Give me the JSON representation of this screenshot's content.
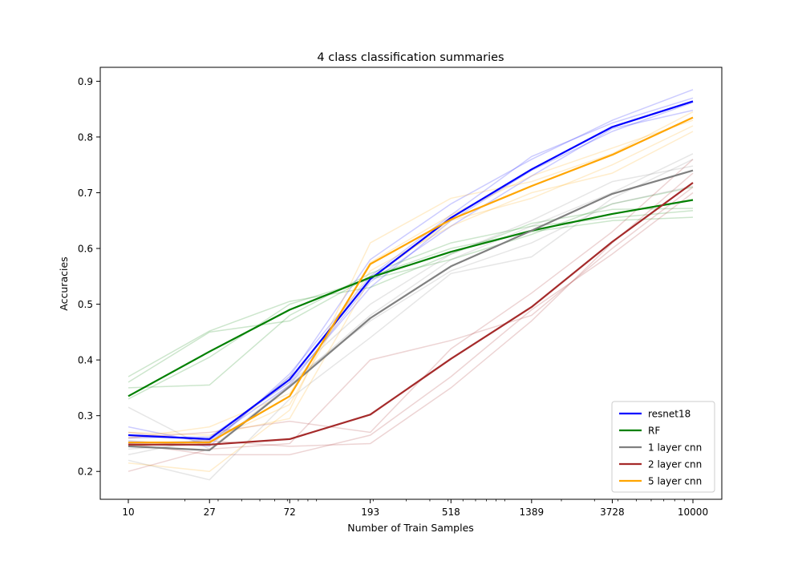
{
  "chart_data": {
    "type": "line",
    "title": "4 class classification summaries",
    "xlabel": "Number of Train Samples",
    "ylabel": "Accuracies",
    "x_scale": "log",
    "x": [
      10,
      27,
      72,
      193,
      518,
      1389,
      3728,
      10000
    ],
    "x_tick_labels": [
      "10",
      "27",
      "72",
      "193",
      "518",
      "1389",
      "3728",
      "10000"
    ],
    "y_ticks": [
      0.2,
      0.3,
      0.4,
      0.5,
      0.6,
      0.7,
      0.8,
      0.9
    ],
    "y_tick_labels": [
      "0.2",
      "0.3",
      "0.4",
      "0.5",
      "0.6",
      "0.7",
      "0.8",
      "0.9"
    ],
    "ylim": [
      0.15,
      0.925
    ],
    "legend_position": "lower-right",
    "grid": false,
    "series": [
      {
        "name": "resnet18",
        "color": "#0000ff",
        "values": [
          0.265,
          0.258,
          0.365,
          0.545,
          0.655,
          0.742,
          0.818,
          0.864
        ],
        "runs": [
          [
            0.28,
            0.25,
            0.37,
            0.58,
            0.68,
            0.76,
            0.83,
            0.885
          ],
          [
            0.26,
            0.262,
            0.36,
            0.53,
            0.65,
            0.74,
            0.81,
            0.862
          ],
          [
            0.25,
            0.255,
            0.355,
            0.54,
            0.64,
            0.73,
            0.815,
            0.848
          ],
          [
            0.255,
            0.245,
            0.375,
            0.55,
            0.66,
            0.765,
            0.825,
            0.87
          ]
        ]
      },
      {
        "name": "RF",
        "color": "#008000",
        "values": [
          0.335,
          0.415,
          0.49,
          0.548,
          0.594,
          0.632,
          0.662,
          0.687
        ],
        "runs": [
          [
            0.37,
            0.452,
            0.505,
            0.53,
            0.59,
            0.645,
            0.67,
            0.672
          ],
          [
            0.35,
            0.355,
            0.48,
            0.555,
            0.61,
            0.64,
            0.655,
            0.668
          ],
          [
            0.33,
            0.405,
            0.5,
            0.545,
            0.58,
            0.625,
            0.68,
            0.71
          ],
          [
            0.36,
            0.45,
            0.47,
            0.55,
            0.6,
            0.63,
            0.65,
            0.656
          ]
        ]
      },
      {
        "name": "1 layer cnn",
        "color": "#808080",
        "values": [
          0.245,
          0.238,
          0.352,
          0.475,
          0.568,
          0.632,
          0.698,
          0.74
        ],
        "runs": [
          [
            0.315,
            0.24,
            0.355,
            0.48,
            0.58,
            0.64,
            0.7,
            0.77
          ],
          [
            0.22,
            0.185,
            0.33,
            0.44,
            0.555,
            0.585,
            0.69,
            0.76
          ],
          [
            0.24,
            0.25,
            0.37,
            0.5,
            0.59,
            0.65,
            0.72,
            0.748
          ],
          [
            0.23,
            0.26,
            0.36,
            0.47,
            0.56,
            0.61,
            0.68,
            0.712
          ]
        ]
      },
      {
        "name": "2 layer cnn",
        "color": "#a52a2a",
        "values": [
          0.248,
          0.248,
          0.258,
          0.302,
          0.402,
          0.495,
          0.612,
          0.718
        ],
        "runs": [
          [
            0.26,
            0.27,
            0.29,
            0.27,
            0.42,
            0.52,
            0.63,
            0.76
          ],
          [
            0.2,
            0.24,
            0.25,
            0.4,
            0.435,
            0.48,
            0.6,
            0.71
          ],
          [
            0.25,
            0.23,
            0.23,
            0.265,
            0.37,
            0.49,
            0.59,
            0.7
          ],
          [
            0.27,
            0.255,
            0.245,
            0.25,
            0.35,
            0.47,
            0.61,
            0.735
          ]
        ]
      },
      {
        "name": "5 layer cnn",
        "color": "#ffa500",
        "values": [
          0.252,
          0.252,
          0.335,
          0.572,
          0.652,
          0.712,
          0.768,
          0.835
        ],
        "runs": [
          [
            0.215,
            0.2,
            0.31,
            0.61,
            0.69,
            0.72,
            0.77,
            0.845
          ],
          [
            0.26,
            0.28,
            0.34,
            0.56,
            0.64,
            0.7,
            0.735,
            0.81
          ],
          [
            0.245,
            0.255,
            0.32,
            0.575,
            0.66,
            0.73,
            0.78,
            0.83
          ],
          [
            0.27,
            0.265,
            0.295,
            0.545,
            0.65,
            0.69,
            0.75,
            0.82
          ]
        ]
      }
    ]
  }
}
